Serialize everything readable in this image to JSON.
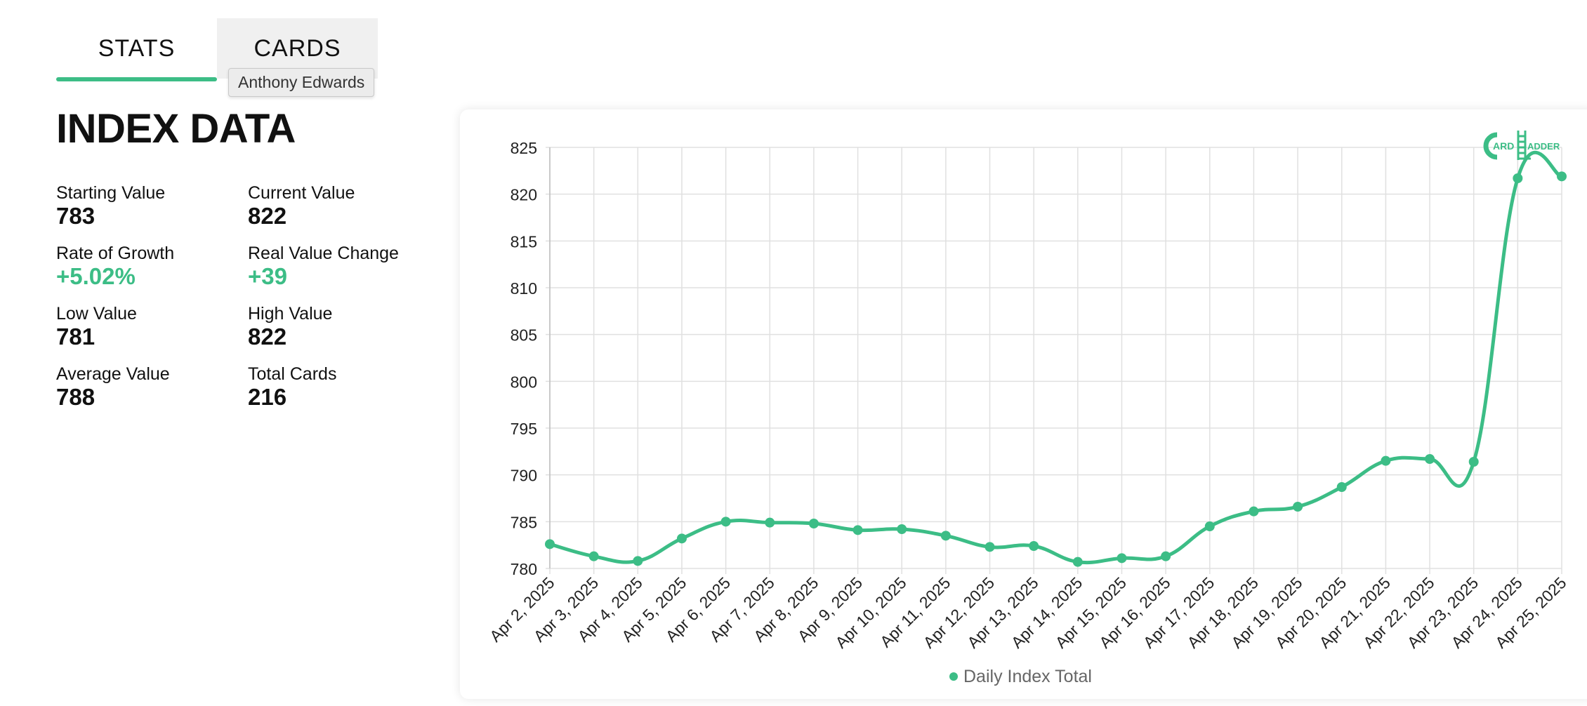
{
  "tabs": [
    {
      "label": "STATS"
    },
    {
      "label": "CARDS"
    }
  ],
  "tooltip": "Anthony Edwards",
  "index": {
    "title": "INDEX DATA",
    "stats": [
      {
        "label": "Starting Value",
        "value": "783"
      },
      {
        "label": "Current Value",
        "value": "822"
      },
      {
        "label": "Rate of Growth",
        "value": "+5.02%"
      },
      {
        "label": "Real Value Change",
        "value": "+39"
      },
      {
        "label": "Low Value",
        "value": "781"
      },
      {
        "label": "High Value",
        "value": "822"
      },
      {
        "label": "Average Value",
        "value": "788"
      },
      {
        "label": "Total Cards",
        "value": "216"
      }
    ]
  },
  "logo": {
    "text_left": "ARD",
    "text_right": "ADDER",
    "icon": "card-ladder-logo"
  },
  "colors": {
    "accent": "#3cbd86",
    "grid": "#e0e0e0",
    "axis_text": "#222222",
    "legend_text": "#666666"
  },
  "chart_data": {
    "type": "line",
    "title": "",
    "xlabel": "",
    "ylabel": "",
    "ylim": [
      780,
      825
    ],
    "yticks": [
      780,
      785,
      790,
      795,
      800,
      805,
      810,
      815,
      820,
      825
    ],
    "grid": true,
    "legend_position": "bottom",
    "categories": [
      "Apr 2, 2025",
      "Apr 3, 2025",
      "Apr 4, 2025",
      "Apr 5, 2025",
      "Apr 6, 2025",
      "Apr 7, 2025",
      "Apr 8, 2025",
      "Apr 9, 2025",
      "Apr 10, 2025",
      "Apr 11, 2025",
      "Apr 12, 2025",
      "Apr 13, 2025",
      "Apr 14, 2025",
      "Apr 15, 2025",
      "Apr 16, 2025",
      "Apr 17, 2025",
      "Apr 18, 2025",
      "Apr 19, 2025",
      "Apr 20, 2025",
      "Apr 21, 2025",
      "Apr 22, 2025",
      "Apr 23, 2025",
      "Apr 24, 2025",
      "Apr 25, 2025"
    ],
    "series": [
      {
        "name": "Daily Index Total",
        "color": "#3cbd86",
        "values": [
          782.6,
          781.3,
          780.8,
          783.2,
          785.0,
          784.9,
          784.8,
          784.1,
          784.2,
          783.5,
          782.3,
          782.4,
          780.7,
          781.1,
          781.3,
          784.5,
          786.1,
          786.6,
          788.7,
          791.5,
          791.7,
          791.4,
          821.7,
          821.9
        ]
      }
    ]
  }
}
